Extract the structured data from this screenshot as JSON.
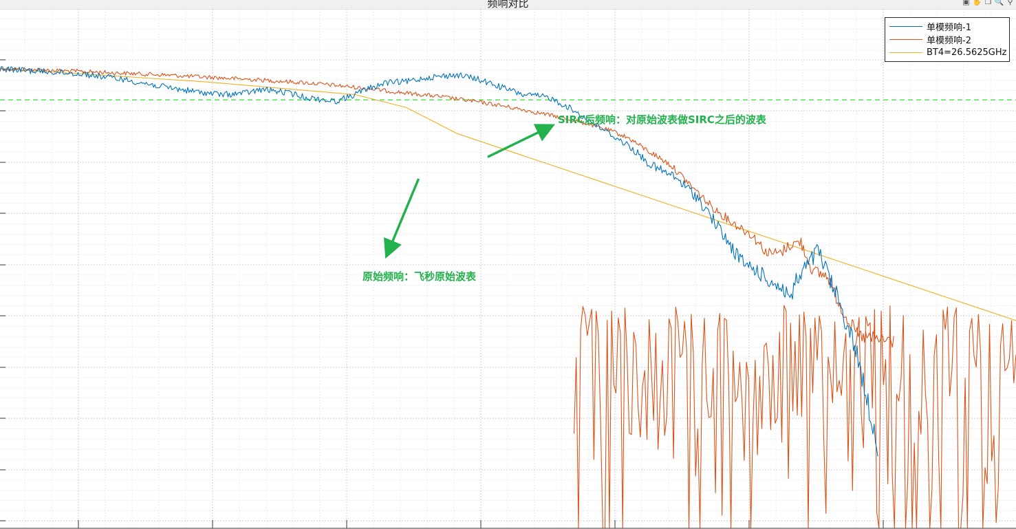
{
  "window": {
    "toolbar": [
      {
        "icon": "save-icon"
      },
      {
        "icon": "pan-icon"
      },
      {
        "icon": "copy-icon"
      },
      {
        "icon": "zoom-in-icon"
      },
      {
        "icon": "zoom-out-icon"
      }
    ]
  },
  "chart_data": {
    "type": "line",
    "title": "频响对比",
    "xlabel": "",
    "ylabel": "",
    "x_tick_labels": [],
    "y_tick_labels": [],
    "value_note": "axis tick labels are not legible; values are relative positions in the plot area (x from 0 = left edge to 1 = right edge, y from 0 = top edge to 1 = bottom edge)",
    "grid": "on (major and minor)",
    "legend": {
      "placement": "top-right",
      "entries": [
        "单模频响-1",
        "单模频响-2",
        "BT4=26.5625GHz"
      ]
    },
    "reference_line": {
      "color": "#33dd33",
      "style": "dashed",
      "y": 0.175
    },
    "series": [
      {
        "name": "单模频响-1",
        "color": "#0072bd",
        "noise": 0.006,
        "x": [
          0,
          0.04,
          0.08,
          0.12,
          0.16,
          0.195,
          0.22,
          0.24,
          0.26,
          0.285,
          0.3,
          0.33,
          0.345,
          0.36,
          0.38,
          0.4,
          0.42,
          0.45,
          0.47,
          0.5,
          0.515,
          0.54,
          0.56,
          0.58,
          0.6,
          0.62,
          0.64,
          0.665,
          0.685,
          0.7,
          0.72,
          0.732,
          0.742,
          0.755,
          0.768,
          0.78,
          0.782,
          0.805,
          0.825,
          0.843,
          0.865
        ],
        "y": [
          0.115,
          0.12,
          0.125,
          0.135,
          0.15,
          0.16,
          0.165,
          0.162,
          0.155,
          0.162,
          0.17,
          0.178,
          0.168,
          0.155,
          0.142,
          0.14,
          0.132,
          0.127,
          0.135,
          0.155,
          0.165,
          0.17,
          0.19,
          0.215,
          0.24,
          0.265,
          0.3,
          0.325,
          0.36,
          0.4,
          0.46,
          0.49,
          0.5,
          0.52,
          0.535,
          0.555,
          0.53,
          0.465,
          0.56,
          0.66,
          0.855
        ]
      },
      {
        "name": "单模频响-2",
        "color": "#d95319",
        "noise": 0.004,
        "x": [
          0,
          0.05,
          0.1,
          0.15,
          0.2,
          0.25,
          0.3,
          0.33,
          0.36,
          0.4,
          0.43,
          0.46,
          0.49,
          0.52,
          0.55,
          0.58,
          0.605,
          0.62,
          0.635,
          0.66,
          0.68,
          0.7,
          0.72,
          0.74,
          0.755,
          0.768,
          0.777,
          0.788,
          0.8,
          0.815,
          0.822,
          0.828,
          0.835,
          0.845,
          0.86,
          0.88
        ],
        "y": [
          0.115,
          0.118,
          0.122,
          0.126,
          0.131,
          0.136,
          0.142,
          0.147,
          0.153,
          0.162,
          0.168,
          0.176,
          0.185,
          0.196,
          0.208,
          0.222,
          0.237,
          0.25,
          0.27,
          0.3,
          0.34,
          0.38,
          0.41,
          0.435,
          0.47,
          0.47,
          0.455,
          0.448,
          0.505,
          0.515,
          0.55,
          0.575,
          0.6,
          0.63,
          0.635,
          0.64
        ]
      },
      {
        "name": "单模频响-2 (noisy tail)",
        "color": "#d95319",
        "points": 200,
        "y_range": [
          0.57,
          1.0
        ],
        "x_range": [
          0.565,
          1.0
        ]
      },
      {
        "name": "BT4=26.5625GHz",
        "color": "#edb120",
        "x": [
          0,
          0.2,
          0.35,
          0.4,
          0.45,
          1.0
        ],
        "y": [
          0.115,
          0.14,
          0.165,
          0.19,
          0.24,
          0.6
        ]
      }
    ],
    "annotations": [
      {
        "text": "SIRC后频响：对原始波表做SIRC之后的波表",
        "arrow": {
          "from": [
            0.48,
            0.285
          ],
          "to": [
            0.54,
            0.228
          ]
        }
      },
      {
        "text": "原始频响：飞秒原始波表",
        "arrow": {
          "from": [
            0.412,
            0.327
          ],
          "to": [
            0.382,
            0.468
          ]
        }
      }
    ]
  }
}
